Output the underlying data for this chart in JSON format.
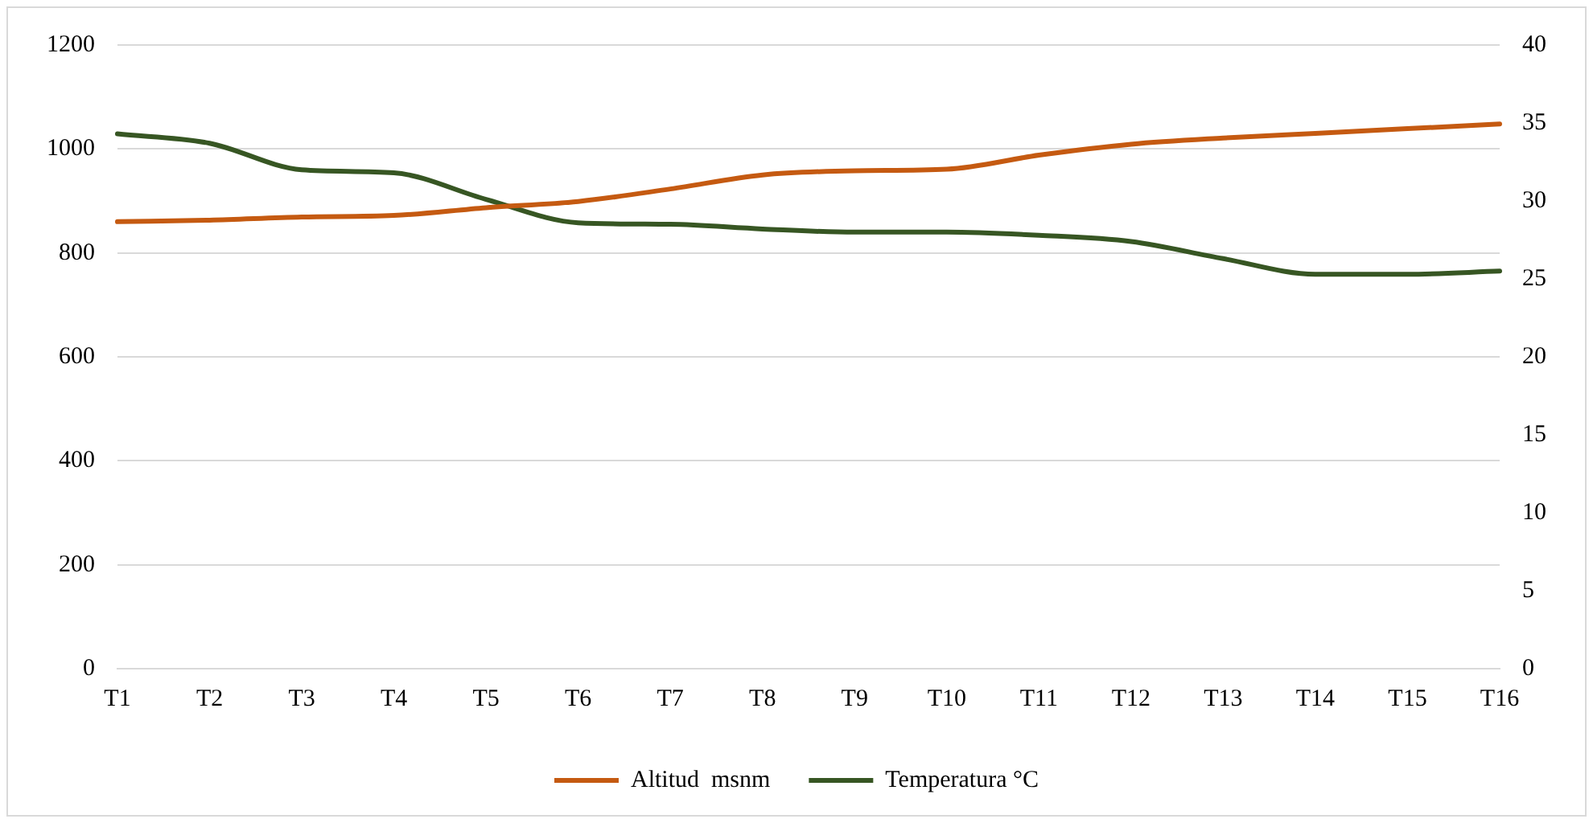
{
  "chart_data": {
    "type": "line",
    "categories": [
      "T1",
      "T2",
      "T3",
      "T4",
      "T5",
      "T6",
      "T7",
      "T8",
      "T9",
      "T10",
      "T11",
      "T12",
      "T13",
      "T14",
      "T15",
      "T16"
    ],
    "series": [
      {
        "name": "Altitud  msnm",
        "color": "#c55a11",
        "values": [
          860,
          863,
          869,
          872,
          887,
          899,
          923,
          950,
          958,
          961,
          988,
          1009,
          1021,
          1030,
          1039,
          1048
        ]
      },
      {
        "name": "Temperatura °C",
        "color": "#375623",
        "axis": "y2",
        "values": [
          34.3,
          33.7,
          32.0,
          31.8,
          30.1,
          28.6,
          28.5,
          28.2,
          28.0,
          28.0,
          27.8,
          27.4,
          26.3,
          25.3,
          25.3,
          25.5
        ]
      }
    ],
    "ylim": [
      0,
      1200
    ],
    "yticks": [
      0,
      200,
      400,
      600,
      800,
      1000,
      1200
    ],
    "y2lim": [
      0,
      40
    ],
    "y2ticks": [
      0,
      5,
      10,
      15,
      20,
      25,
      30,
      35,
      40
    ],
    "grid": "y",
    "legend": "bottom",
    "marker": "none",
    "line_style": "solid"
  }
}
